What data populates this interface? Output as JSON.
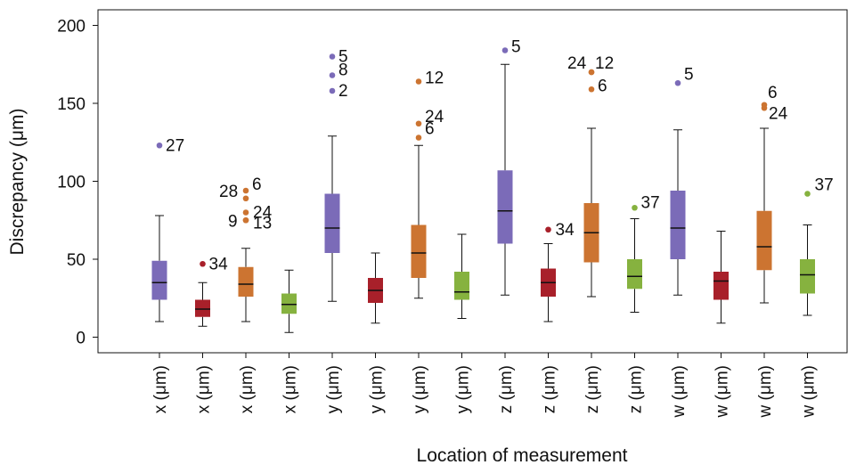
{
  "chart_data": {
    "type": "box",
    "title": "",
    "xlabel": "Location of measurement",
    "ylabel": "Discrepancy (μm)",
    "ylim": [
      -10,
      210
    ],
    "yticks": [
      0,
      50,
      100,
      150,
      200
    ],
    "grid": false,
    "legend": "none",
    "colors": {
      "purple": "#7b6bb8",
      "red": "#a8202a",
      "orange": "#cc7431",
      "green": "#86b23f"
    },
    "boxes": [
      {
        "label": "x (μm)",
        "color": "#7b6bb8",
        "whisker_low": 10,
        "q1": 24,
        "median": 35,
        "q3": 49,
        "whisker_high": 78,
        "outliers": [
          {
            "value": 123,
            "label": "27"
          }
        ]
      },
      {
        "label": "x (μm)",
        "color": "#a8202a",
        "whisker_low": 7,
        "q1": 13,
        "median": 18,
        "q3": 24,
        "whisker_high": 35,
        "outliers": [
          {
            "value": 47,
            "label": "34"
          }
        ]
      },
      {
        "label": "x (μm)",
        "color": "#cc7431",
        "whisker_low": 10,
        "q1": 26,
        "median": 34,
        "q3": 45,
        "whisker_high": 57,
        "outliers": [
          {
            "value": 94,
            "label": "28"
          },
          {
            "value": 89,
            "label": "6"
          },
          {
            "value": 80,
            "label": "24"
          },
          {
            "value": 75,
            "label": "9"
          },
          {
            "value": 75,
            "label": "13"
          }
        ]
      },
      {
        "label": "x (μm)",
        "color": "#86b23f",
        "whisker_low": 3,
        "q1": 15,
        "median": 21,
        "q3": 28,
        "whisker_high": 43,
        "outliers": []
      },
      {
        "label": "y (μm)",
        "color": "#7b6bb8",
        "whisker_low": 23,
        "q1": 54,
        "median": 70,
        "q3": 92,
        "whisker_high": 129,
        "outliers": [
          {
            "value": 180,
            "label": "5"
          },
          {
            "value": 168,
            "label": "8"
          },
          {
            "value": 158,
            "label": "2"
          }
        ]
      },
      {
        "label": "y (μm)",
        "color": "#a8202a",
        "whisker_low": 9,
        "q1": 22,
        "median": 30,
        "q3": 38,
        "whisker_high": 54,
        "outliers": []
      },
      {
        "label": "y (μm)",
        "color": "#cc7431",
        "whisker_low": 25,
        "q1": 38,
        "median": 54,
        "q3": 72,
        "whisker_high": 123,
        "outliers": [
          {
            "value": 164,
            "label": "12"
          },
          {
            "value": 137,
            "label": "24"
          },
          {
            "value": 128,
            "label": "6"
          }
        ]
      },
      {
        "label": "y (μm)",
        "color": "#86b23f",
        "whisker_low": 12,
        "q1": 24,
        "median": 29,
        "q3": 42,
        "whisker_high": 66,
        "outliers": []
      },
      {
        "label": "z (μm)",
        "color": "#7b6bb8",
        "whisker_low": 27,
        "q1": 60,
        "median": 81,
        "q3": 107,
        "whisker_high": 175,
        "outliers": [
          {
            "value": 184,
            "label": "5"
          }
        ]
      },
      {
        "label": "z (μm)",
        "color": "#a8202a",
        "whisker_low": 10,
        "q1": 26,
        "median": 35,
        "q3": 44,
        "whisker_high": 60,
        "outliers": [
          {
            "value": 69,
            "label": "34"
          }
        ]
      },
      {
        "label": "z (μm)",
        "color": "#cc7431",
        "whisker_low": 26,
        "q1": 48,
        "median": 67,
        "q3": 86,
        "whisker_high": 134,
        "outliers": [
          {
            "value": 170,
            "label": "24"
          },
          {
            "value": 170,
            "label": "12"
          },
          {
            "value": 159,
            "label": "6"
          }
        ]
      },
      {
        "label": "z (μm)",
        "color": "#86b23f",
        "whisker_low": 16,
        "q1": 31,
        "median": 39,
        "q3": 50,
        "whisker_high": 76,
        "outliers": [
          {
            "value": 83,
            "label": "37"
          }
        ]
      },
      {
        "label": "w (μm)",
        "color": "#7b6bb8",
        "whisker_low": 27,
        "q1": 50,
        "median": 70,
        "q3": 94,
        "whisker_high": 133,
        "outliers": [
          {
            "value": 163,
            "label": "5"
          }
        ]
      },
      {
        "label": "w (μm)",
        "color": "#a8202a",
        "whisker_low": 9,
        "q1": 24,
        "median": 36,
        "q3": 42,
        "whisker_high": 68,
        "outliers": []
      },
      {
        "label": "w (μm)",
        "color": "#cc7431",
        "whisker_low": 22,
        "q1": 43,
        "median": 58,
        "q3": 81,
        "whisker_high": 134,
        "outliers": [
          {
            "value": 149,
            "label": "6"
          },
          {
            "value": 147,
            "label": "24"
          }
        ]
      },
      {
        "label": "w (μm)",
        "color": "#86b23f",
        "whisker_low": 14,
        "q1": 28,
        "median": 40,
        "q3": 50,
        "whisker_high": 72,
        "outliers": [
          {
            "value": 92,
            "label": "37"
          }
        ]
      }
    ]
  }
}
